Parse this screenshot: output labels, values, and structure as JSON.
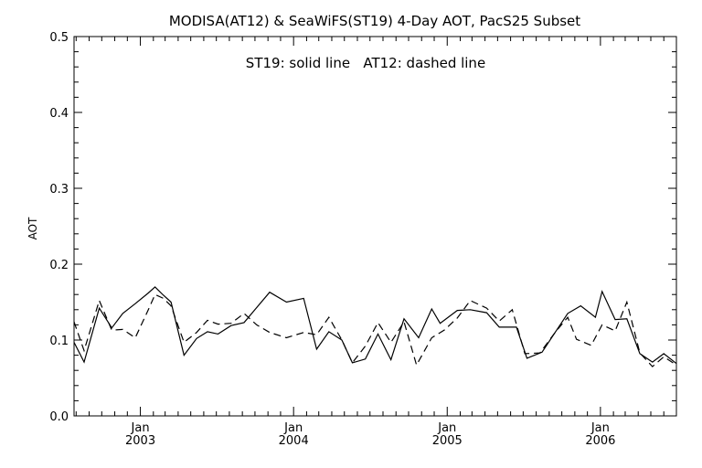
{
  "chart_data": {
    "type": "line",
    "title": "MODISA(AT12) & SeaWiFS(ST19) 4-Day AOT, PacS25 Subset",
    "annotation": "ST19: solid line   AT12: dashed line",
    "ylabel": "AOT",
    "xlabel": "",
    "ylim": [
      0.0,
      0.5
    ],
    "xlim": [
      "2002-07-27",
      "2006-07-01"
    ],
    "y_ticks": [
      "0.0",
      "0.1",
      "0.2",
      "0.3",
      "0.4",
      "0.5"
    ],
    "x_month_labels": [
      "Jan",
      "Jan",
      "Jan",
      "Jan"
    ],
    "x_year_labels": [
      "2003",
      "2004",
      "2005",
      "2006"
    ],
    "x_tick_dates": [
      "2003-01-01",
      "2004-01-01",
      "2005-01-01",
      "2006-01-01"
    ],
    "grid": false,
    "series": [
      {
        "name": "ST19",
        "style": "solid",
        "color": "#000000",
        "points": [
          [
            "2002-07-27",
            0.097
          ],
          [
            "2002-08-20",
            0.071
          ],
          [
            "2002-09-25",
            0.142
          ],
          [
            "2002-10-25",
            0.116
          ],
          [
            "2002-11-20",
            0.135
          ],
          [
            "2002-12-20",
            0.148
          ],
          [
            "2003-01-20",
            0.162
          ],
          [
            "2003-02-05",
            0.17
          ],
          [
            "2003-02-25",
            0.159
          ],
          [
            "2003-03-15",
            0.15
          ],
          [
            "2003-04-15",
            0.08
          ],
          [
            "2003-05-15",
            0.102
          ],
          [
            "2003-06-10",
            0.111
          ],
          [
            "2003-07-05",
            0.108
          ],
          [
            "2003-08-05",
            0.119
          ],
          [
            "2003-09-05",
            0.123
          ],
          [
            "2003-10-01",
            0.14
          ],
          [
            "2003-11-05",
            0.163
          ],
          [
            "2003-12-15",
            0.15
          ],
          [
            "2004-01-25",
            0.155
          ],
          [
            "2004-02-25",
            0.088
          ],
          [
            "2004-03-25",
            0.111
          ],
          [
            "2004-04-25",
            0.1
          ],
          [
            "2004-05-20",
            0.07
          ],
          [
            "2004-06-20",
            0.075
          ],
          [
            "2004-07-20",
            0.108
          ],
          [
            "2004-08-20",
            0.074
          ],
          [
            "2004-09-20",
            0.128
          ],
          [
            "2004-10-25",
            0.103
          ],
          [
            "2004-11-25",
            0.141
          ],
          [
            "2004-12-15",
            0.122
          ],
          [
            "2005-01-25",
            0.139
          ],
          [
            "2005-02-25",
            0.14
          ],
          [
            "2005-04-05",
            0.136
          ],
          [
            "2005-05-05",
            0.117
          ],
          [
            "2005-06-15",
            0.117
          ],
          [
            "2005-07-10",
            0.076
          ],
          [
            "2005-08-15",
            0.084
          ],
          [
            "2005-09-15",
            0.11
          ],
          [
            "2005-10-15",
            0.135
          ],
          [
            "2005-11-15",
            0.145
          ],
          [
            "2005-12-20",
            0.13
          ],
          [
            "2006-01-05",
            0.164
          ],
          [
            "2006-02-05",
            0.127
          ],
          [
            "2006-03-05",
            0.128
          ],
          [
            "2006-04-05",
            0.082
          ],
          [
            "2006-05-05",
            0.071
          ],
          [
            "2006-06-01",
            0.082
          ],
          [
            "2006-07-01",
            0.069
          ]
        ]
      },
      {
        "name": "AT12",
        "style": "dashed",
        "color": "#000000",
        "points": [
          [
            "2002-07-27",
            0.124
          ],
          [
            "2002-08-20",
            0.086
          ],
          [
            "2002-09-25",
            0.152
          ],
          [
            "2002-10-25",
            0.113
          ],
          [
            "2002-11-20",
            0.114
          ],
          [
            "2002-12-20",
            0.103
          ],
          [
            "2003-01-20",
            0.14
          ],
          [
            "2003-02-05",
            0.16
          ],
          [
            "2003-02-25",
            0.155
          ],
          [
            "2003-03-15",
            0.145
          ],
          [
            "2003-04-15",
            0.097
          ],
          [
            "2003-05-15",
            0.11
          ],
          [
            "2003-06-10",
            0.126
          ],
          [
            "2003-07-05",
            0.121
          ],
          [
            "2003-08-05",
            0.122
          ],
          [
            "2003-09-05",
            0.135
          ],
          [
            "2003-10-05",
            0.12
          ],
          [
            "2003-11-05",
            0.11
          ],
          [
            "2003-12-15",
            0.103
          ],
          [
            "2004-01-25",
            0.11
          ],
          [
            "2004-02-25",
            0.107
          ],
          [
            "2004-03-25",
            0.13
          ],
          [
            "2004-04-25",
            0.1
          ],
          [
            "2004-05-20",
            0.07
          ],
          [
            "2004-06-20",
            0.092
          ],
          [
            "2004-07-20",
            0.123
          ],
          [
            "2004-08-20",
            0.097
          ],
          [
            "2004-09-20",
            0.124
          ],
          [
            "2004-10-20",
            0.067
          ],
          [
            "2004-11-25",
            0.103
          ],
          [
            "2004-12-25",
            0.113
          ],
          [
            "2005-01-25",
            0.129
          ],
          [
            "2005-02-25",
            0.152
          ],
          [
            "2005-04-05",
            0.142
          ],
          [
            "2005-05-05",
            0.125
          ],
          [
            "2005-06-05",
            0.14
          ],
          [
            "2005-07-05",
            0.082
          ],
          [
            "2005-08-10",
            0.083
          ],
          [
            "2005-09-15",
            0.11
          ],
          [
            "2005-10-15",
            0.13
          ],
          [
            "2005-11-05",
            0.101
          ],
          [
            "2005-12-10",
            0.093
          ],
          [
            "2006-01-05",
            0.12
          ],
          [
            "2006-02-05",
            0.112
          ],
          [
            "2006-03-05",
            0.15
          ],
          [
            "2006-04-05",
            0.083
          ],
          [
            "2006-05-05",
            0.065
          ],
          [
            "2006-06-01",
            0.078
          ],
          [
            "2006-07-01",
            0.067
          ]
        ]
      }
    ]
  }
}
